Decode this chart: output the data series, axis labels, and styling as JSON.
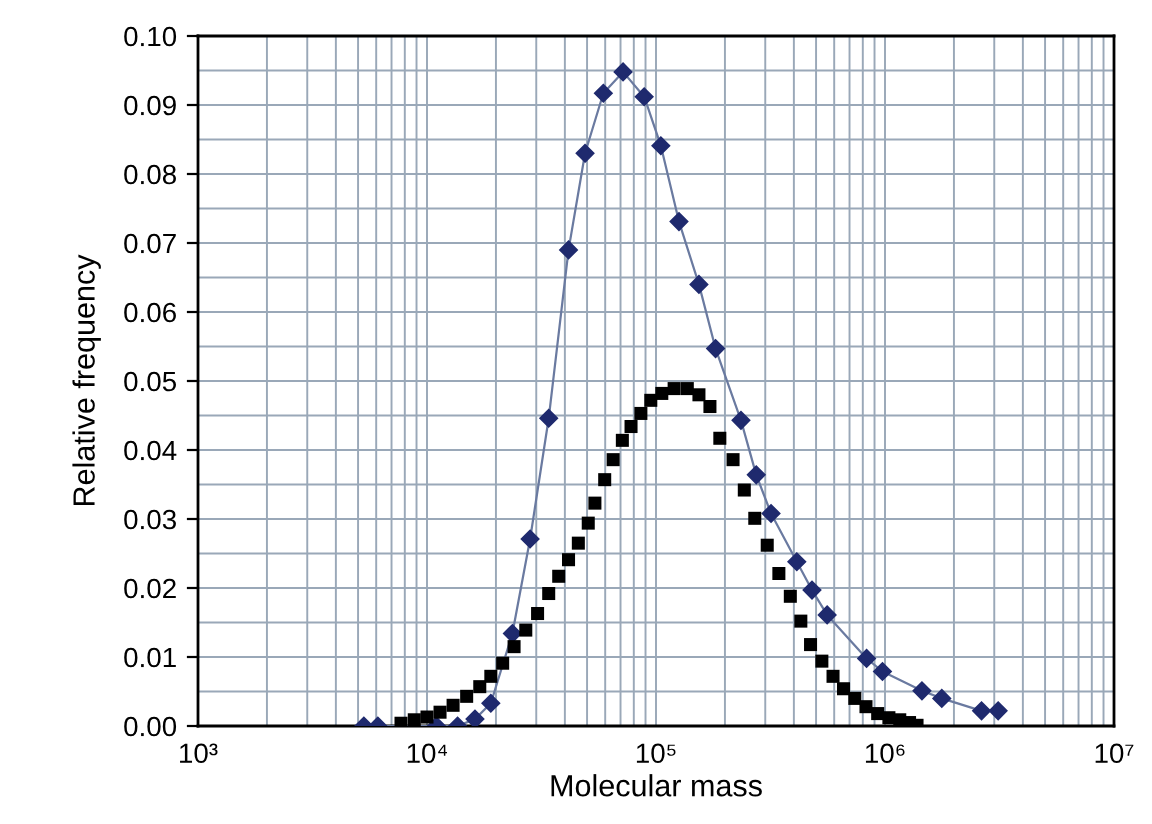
{
  "chart_data": {
    "type": "line",
    "xlabel": "Molecular mass",
    "ylabel": "Relative frequency",
    "log": "x",
    "grid": true,
    "xlim": [
      1000,
      10000000
    ],
    "xticks": [
      {
        "value": 1000,
        "label": "10³"
      },
      {
        "value": 10000,
        "label": "10⁴"
      },
      {
        "value": 100000,
        "label": "10⁵"
      },
      {
        "value": 1000000,
        "label": "10⁶"
      },
      {
        "value": 10000000,
        "label": "10⁷"
      }
    ],
    "ylim": [
      0,
      0.1
    ],
    "yticks": [
      {
        "value": 0,
        "label": "0.00"
      },
      {
        "value": 0.01,
        "label": "0.01"
      },
      {
        "value": 0.02,
        "label": "0.02"
      },
      {
        "value": 0.03,
        "label": "0.03"
      },
      {
        "value": 0.04,
        "label": "0.04"
      },
      {
        "value": 0.05,
        "label": "0.05"
      },
      {
        "value": 0.06,
        "label": "0.06"
      },
      {
        "value": 0.07,
        "label": "0.07"
      },
      {
        "value": 0.08,
        "label": "0.08"
      },
      {
        "value": 0.09,
        "label": "0.09"
      },
      {
        "value": 0.1,
        "label": "0.10"
      }
    ],
    "series": [
      {
        "marker": "diamond",
        "color": "#1f2a6e",
        "x": [
          5300,
          6100,
          11000,
          13600,
          16200,
          19000,
          23600,
          28200,
          34000,
          41500,
          49000,
          58900,
          71800,
          88800,
          105000,
          126000,
          154000,
          182000,
          235000,
          274000,
          318000,
          412000,
          480000,
          559000,
          831000,
          975000,
          1450000,
          1770000,
          2640000,
          3120000
        ],
        "values": [
          0,
          0,
          0,
          0,
          0.001,
          0.0033,
          0.0134,
          0.0271,
          0.0446,
          0.069,
          0.083,
          0.0917,
          0.0948,
          0.0912,
          0.0841,
          0.0731,
          0.064,
          0.0547,
          0.0443,
          0.0364,
          0.0308,
          0.0238,
          0.0197,
          0.0161,
          0.0098,
          0.0079,
          0.0051,
          0.004,
          0.0022,
          0.0022
        ]
      },
      {
        "type": "scatter",
        "marker": "square",
        "color": "#000000",
        "x": [
          7700,
          8800,
          10000,
          11400,
          13000,
          14900,
          17000,
          19000,
          21400,
          24000,
          27000,
          30400,
          34000,
          37600,
          41500,
          45800,
          50600,
          54100,
          59700,
          65000,
          71300,
          77800,
          85900,
          94900,
          106000,
          120000,
          137000,
          154000,
          172000,
          190000,
          217000,
          243000,
          270000,
          306000,
          344000,
          386000,
          429000,
          473000,
          530000,
          593000,
          659000,
          738000,
          826000,
          929000,
          1040000,
          1160000,
          1280000,
          1380000
        ],
        "values": [
          0.0004,
          0.0009,
          0.0013,
          0.002,
          0.003,
          0.0043,
          0.0057,
          0.0072,
          0.0091,
          0.0115,
          0.0139,
          0.0163,
          0.0192,
          0.0217,
          0.0241,
          0.0265,
          0.0294,
          0.0323,
          0.0357,
          0.0386,
          0.0414,
          0.0434,
          0.0453,
          0.0472,
          0.0482,
          0.0489,
          0.0489,
          0.048,
          0.0463,
          0.0417,
          0.0386,
          0.0342,
          0.0301,
          0.0262,
          0.0221,
          0.0188,
          0.0152,
          0.0118,
          0.0094,
          0.0072,
          0.0054,
          0.004,
          0.0028,
          0.0018,
          0.0012,
          0.0009,
          0.0005,
          0.0001
        ]
      }
    ]
  }
}
